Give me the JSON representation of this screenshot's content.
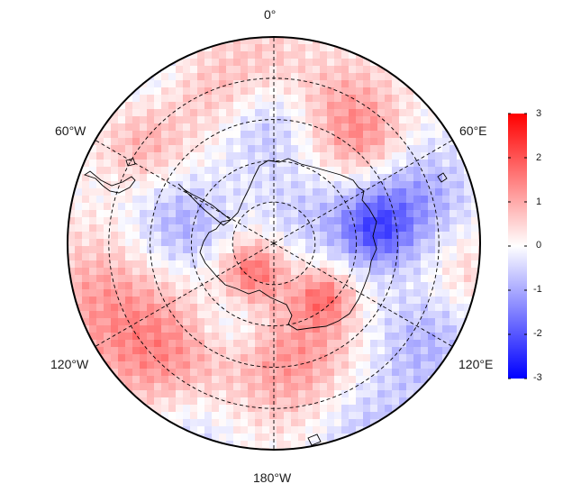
{
  "map": {
    "projection": "south-polar-stereographic",
    "longitude_labels": {
      "top": "0°",
      "upper_left": "60°W",
      "upper_right": "60°E",
      "lower_left": "120°W",
      "lower_right": "120°E",
      "bottom": "180°W"
    },
    "latitude_rings": 4,
    "meridian_lines": 6,
    "grid_style": "dashed",
    "coastlines": [
      "Antarctica",
      "South America tip",
      "New Zealand tip"
    ]
  },
  "colorbar": {
    "ticks": [
      "3",
      "2",
      "1",
      "0",
      "-1",
      "-2",
      "-3"
    ],
    "min": -3,
    "max": 3,
    "colors": {
      "high": "#ff0000",
      "mid": "#ffffff",
      "low": "#0000ff"
    }
  }
}
